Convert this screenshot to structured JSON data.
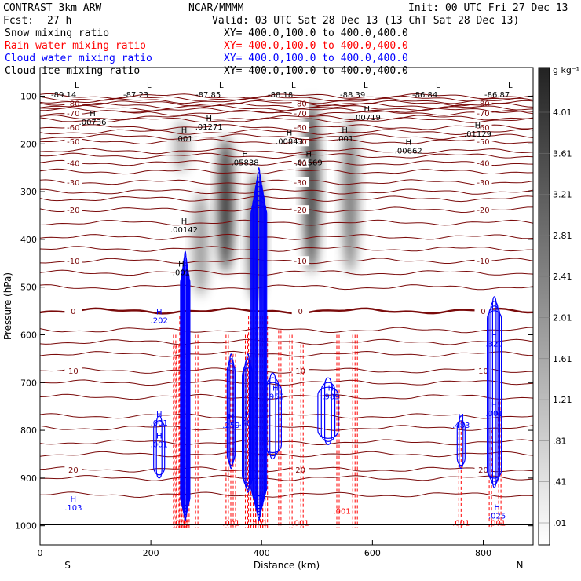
{
  "header": {
    "model": "CONTRAST  3km ARW",
    "org": "NCAR/MMMM",
    "init": "Init: 00 UTC Fri 27 Dec 13",
    "fcst_label": "Fcst:",
    "fcst_value": "27 h",
    "valid": "Valid: 03 UTC Sat 28 Dec 13 (13 ChT Sat 28 Dec 13)"
  },
  "fields": [
    {
      "name": "Snow mixing ratio",
      "xy": "XY=  400.0,100.0 to 400.0,400.0",
      "color": "#000000"
    },
    {
      "name": "Rain water mixing ratio",
      "xy": "XY=  400.0,100.0 to 400.0,400.0",
      "color": "#ff0000"
    },
    {
      "name": "Cloud water mixing ratio",
      "xy": "XY=  400.0,100.0 to 400.0,400.0",
      "color": "#0000ff"
    },
    {
      "name": "Cloud ice mixing ratio",
      "xy": "XY=  400.0,100.0 to 400.0,400.0",
      "color": "#000000"
    }
  ],
  "colorbar": {
    "unit": "g kg⁻¹",
    "labels": [
      "4.01",
      "3.61",
      "3.21",
      "2.81",
      "2.41",
      "2.01",
      "1.61",
      "1.21",
      ".81",
      ".41",
      ".01"
    ]
  },
  "chart_data": {
    "type": "contour cross-section",
    "xlabel": "Distance (km)",
    "ylabel": "Pressure (hPa)",
    "x_ticks": [
      "0",
      "200",
      "400",
      "600",
      "800"
    ],
    "y_ticks": [
      "100",
      "200",
      "300",
      "400",
      "500",
      "600",
      "700",
      "800",
      "900",
      "1000"
    ],
    "xlim": [
      0,
      890
    ],
    "ylim_hPa": [
      1040,
      40
    ],
    "x_end_labels": {
      "left": "S",
      "right": "N"
    },
    "temperature_contours": [
      {
        "label": "-80",
        "p": 115
      },
      {
        "label": "-70",
        "p": 135
      },
      {
        "label": "-60",
        "p": 165
      },
      {
        "label": "-50",
        "p": 195
      },
      {
        "label": "-40",
        "p": 240
      },
      {
        "label": "-30",
        "p": 280
      },
      {
        "label": "-20",
        "p": 338
      },
      {
        "label": "-10",
        "p": 445
      },
      {
        "label": "0",
        "p": 550
      },
      {
        "label": "10",
        "p": 675
      },
      {
        "label": "20",
        "p": 882
      }
    ],
    "surface_pressure_labels": [
      "-89.14",
      "-87.23",
      "-87.85",
      "-88.18",
      "-88.39",
      "-86.84",
      "-86.87"
    ],
    "snow_max_labels": [
      {
        "text": ".00736",
        "x": 95,
        "p": 160
      },
      {
        "text": ".01271",
        "x": 305,
        "p": 170
      },
      {
        "text": ".00719",
        "x": 590,
        "p": 150
      },
      {
        "text": ".01129",
        "x": 790,
        "p": 185
      },
      {
        "text": ".00843",
        "x": 450,
        "p": 200
      },
      {
        "text": ".001",
        "x": 550,
        "p": 195
      },
      {
        "text": ".00662",
        "x": 665,
        "p": 220
      },
      {
        "text": ".001",
        "x": 260,
        "p": 195
      },
      {
        "text": ".05838",
        "x": 370,
        "p": 245
      },
      {
        "text": ".01569",
        "x": 485,
        "p": 245
      },
      {
        "text": ".00142",
        "x": 260,
        "p": 385
      },
      {
        "text": ".001",
        "x": 255,
        "p": 475
      }
    ],
    "cloud_water_labels": [
      {
        "text": ".202",
        "x": 215,
        "p": 575
      },
      {
        "text": ".320",
        "x": 820,
        "p": 625
      },
      {
        "text": ".953",
        "x": 425,
        "p": 735
      },
      {
        "text": ".989",
        "x": 525,
        "p": 735
      },
      {
        "text": ".401",
        "x": 375,
        "p": 790
      },
      {
        "text": ".259",
        "x": 345,
        "p": 795
      },
      {
        "text": ".001",
        "x": 215,
        "p": 790
      },
      {
        "text": ".001",
        "x": 215,
        "p": 835
      },
      {
        "text": ".483",
        "x": 760,
        "p": 795
      },
      {
        "text": ".001",
        "x": 820,
        "p": 770
      },
      {
        "text": ".025",
        "x": 825,
        "p": 985
      },
      {
        "text": ".103",
        "x": 60,
        "p": 968
      }
    ],
    "rain_labels": [
      {
        "text": ".001",
        "x": 255,
        "p": 1000
      },
      {
        "text": ".001",
        "x": 345,
        "p": 1000
      },
      {
        "text": ".401",
        "x": 395,
        "p": 1000
      },
      {
        "text": ".001",
        "x": 470,
        "p": 1000
      },
      {
        "text": ".001",
        "x": 545,
        "p": 975
      },
      {
        "text": ".001",
        "x": 760,
        "p": 1000
      },
      {
        "text": ".001",
        "x": 825,
        "p": 1000
      }
    ],
    "snow_columns": [
      {
        "x": 255,
        "p_top": 150,
        "p_bot": 260,
        "intensity": 0.35
      },
      {
        "x": 290,
        "p_top": 300,
        "p_bot": 520,
        "intensity": 0.45
      },
      {
        "x": 335,
        "p_top": 185,
        "p_bot": 470,
        "intensity": 0.9
      },
      {
        "x": 390,
        "p_top": 260,
        "p_bot": 530,
        "intensity": 0.75
      },
      {
        "x": 490,
        "p_top": 105,
        "p_bot": 470,
        "intensity": 0.85
      },
      {
        "x": 560,
        "p_top": 145,
        "p_bot": 470,
        "intensity": 0.6
      }
    ]
  }
}
